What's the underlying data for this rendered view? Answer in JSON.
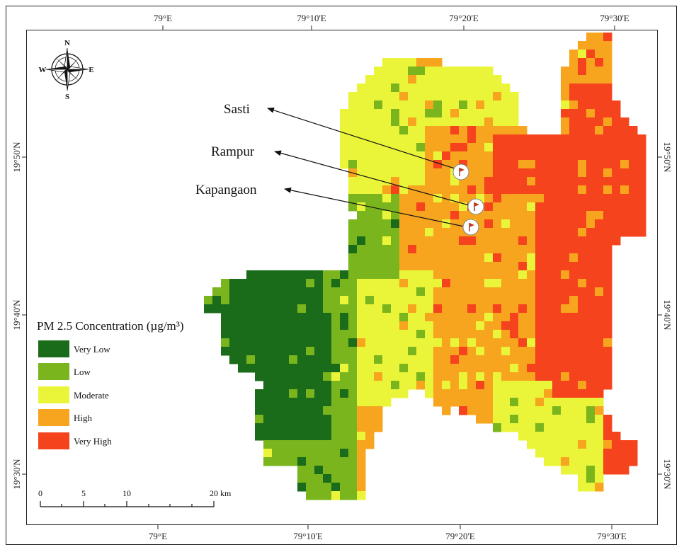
{
  "graticule": {
    "lon_top": [
      "79°E",
      "79°10'E",
      "79°20'E",
      "79°30'E"
    ],
    "lon_bottom": [
      "79°E",
      "79°10'E",
      "79°20'E",
      "79°30'E"
    ],
    "lat_left": [
      "19°50'N",
      "19°40'N",
      "19°30'N"
    ],
    "lat_right": [
      "19°50'N",
      "19°40'N",
      "19°30'N"
    ]
  },
  "compass": {
    "north": "N",
    "south": "S",
    "east": "E",
    "west": "W"
  },
  "places": [
    {
      "name": "Sasti"
    },
    {
      "name": "Rampur"
    },
    {
      "name": "Kapangaon"
    }
  ],
  "legend": {
    "title": "PM 2.5 Concentration (µg/m³)",
    "classes": [
      {
        "label": "Very Low",
        "color": "#1a6b1a"
      },
      {
        "label": "Low",
        "color": "#7ab51e"
      },
      {
        "label": "Moderate",
        "color": "#eaf53a"
      },
      {
        "label": "High",
        "color": "#f7a51f"
      },
      {
        "label": "Very High",
        "color": "#f5431e"
      }
    ]
  },
  "scale_bar": {
    "ticks": [
      "0",
      "5",
      "10",
      "20 km"
    ]
  },
  "colors": {
    "frame": "#222222",
    "marker_flag": "#c0391b"
  }
}
